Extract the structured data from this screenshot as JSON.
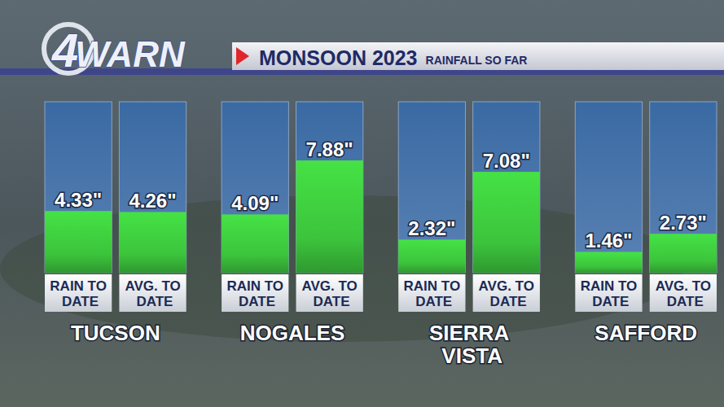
{
  "logo": "4WARN",
  "chart_data": {
    "type": "bar",
    "title": "MONSOON 2023",
    "subtitle": "RAINFALL SO FAR",
    "categories": [
      "TUCSON",
      "NOGALES",
      "SIERRA VISTA",
      "SAFFORD"
    ],
    "series": [
      {
        "name": "RAIN TO DATE",
        "color": "#3cc43c",
        "values": [
          4.33,
          4.09,
          2.32,
          1.46
        ],
        "value_labels": [
          "4.33\"",
          "4.09\"",
          "2.32\"",
          "1.46\""
        ]
      },
      {
        "name": "AVG. TO DATE",
        "color": "#3cc43c",
        "values": [
          4.26,
          7.88,
          7.08,
          2.73
        ],
        "value_labels": [
          "4.26\"",
          "7.88\"",
          "7.08\"",
          "2.73\""
        ]
      }
    ],
    "ylim": [
      0,
      12
    ],
    "tick_labels": false,
    "data_labels": true,
    "grid": false
  }
}
